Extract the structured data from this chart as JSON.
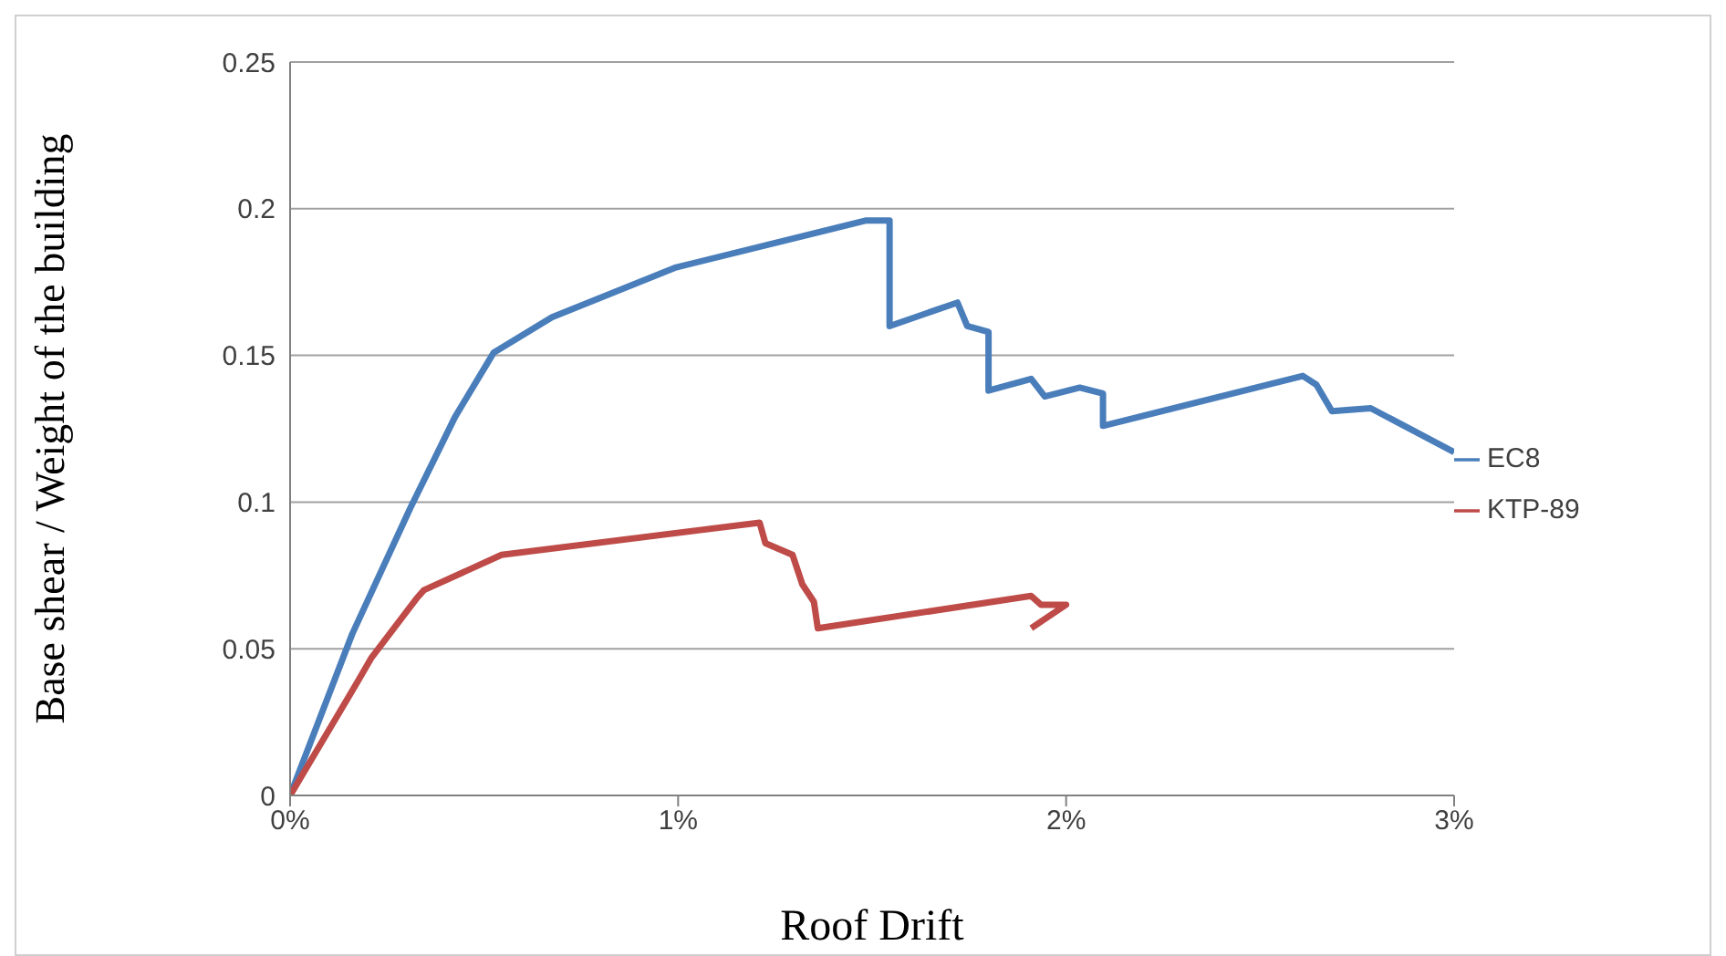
{
  "chart_data": {
    "type": "line",
    "xlabel": "Roof Drift",
    "ylabel": "Base shear / Weight of the building",
    "xlim": [
      0,
      3
    ],
    "xticks": [
      {
        "value": 0,
        "label": "0%"
      },
      {
        "value": 1,
        "label": "1%"
      },
      {
        "value": 2,
        "label": "2%"
      },
      {
        "value": 3,
        "label": "3%"
      }
    ],
    "ylim": [
      0,
      0.25
    ],
    "yticks": [
      0,
      0.05,
      0.1,
      0.15,
      0.2,
      0.25
    ],
    "grid": "y",
    "legend": "right",
    "marker": "none",
    "line_style": "solid",
    "series": [
      {
        "name": "EC8",
        "color": "#4a7ebb",
        "x": [
          0,
          0.16,
          0.31,
          0.425,
          0.525,
          0.675,
          0.995,
          1.485,
          1.53,
          1.545,
          1.545,
          1.72,
          1.745,
          1.8,
          1.8,
          1.91,
          1.945,
          2.035,
          2.095,
          2.095,
          2.61,
          2.645,
          2.685,
          2.785,
          3.0
        ],
        "values": [
          0,
          0.055,
          0.098,
          0.129,
          0.151,
          0.163,
          0.18,
          0.196,
          0.196,
          0.196,
          0.16,
          0.168,
          0.16,
          0.158,
          0.138,
          0.142,
          0.136,
          0.139,
          0.137,
          0.126,
          0.143,
          0.14,
          0.131,
          0.132,
          0.117
        ]
      },
      {
        "name": "KTP-89",
        "color": "#be4b48",
        "x": [
          0,
          0.175,
          0.21,
          0.325,
          0.345,
          0.545,
          1.21,
          1.225,
          1.295,
          1.32,
          1.35,
          1.36,
          1.91,
          1.935,
          2.0,
          1.91
        ],
        "values": [
          0,
          0.039,
          0.047,
          0.067,
          0.07,
          0.082,
          0.093,
          0.086,
          0.082,
          0.072,
          0.066,
          0.057,
          0.068,
          0.065,
          0.065,
          0.057
        ]
      }
    ]
  }
}
